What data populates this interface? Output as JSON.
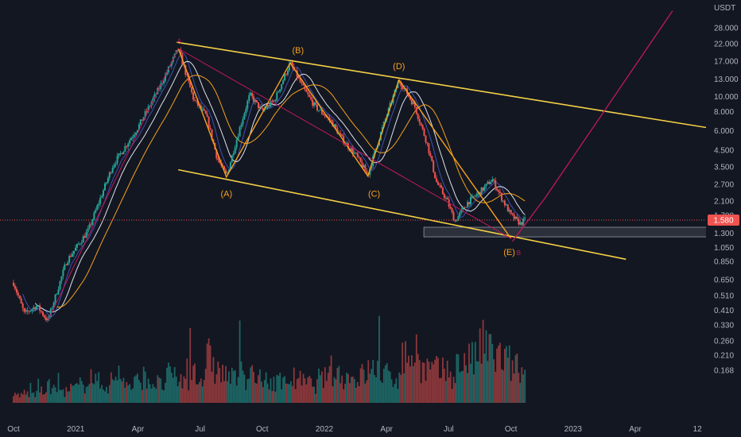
{
  "chart_data": {
    "type": "candlestick",
    "quote_currency": "USDT",
    "y_scale": "log",
    "ylim": [
      0.15,
      36
    ],
    "y_ticks": [
      "28.000",
      "22.000",
      "17.000",
      "13.000",
      "10.000",
      "8.000",
      "6.000",
      "4.500",
      "3.500",
      "2.700",
      "2.100",
      "1.700",
      "1.300",
      "1.050",
      "0.850",
      "0.650",
      "0.510",
      "0.410",
      "0.330",
      "0.260",
      "0.210",
      "0.168"
    ],
    "x_ticks": [
      "Oct",
      "2021",
      "Apr",
      "Jul",
      "Oct",
      "2022",
      "Apr",
      "Jul",
      "Oct",
      "2023",
      "Apr",
      "12"
    ],
    "current_price": "1.580",
    "grid": false,
    "legend": "none",
    "colors": {
      "background": "#131722",
      "up": "#26a69a",
      "down": "#ef5350",
      "channel": "#f5d046",
      "wave": "#f7a21b",
      "projection": "#c2185b",
      "ma_fast": "#3f51b5",
      "ma_mid": "#e0e3eb",
      "ma_slow": "#f7a21b"
    },
    "price_path": [
      {
        "t": 0.0,
        "p": 0.62
      },
      {
        "t": 0.35,
        "p": 0.39
      },
      {
        "t": 0.75,
        "p": 0.44
      },
      {
        "t": 1.1,
        "p": 0.35
      },
      {
        "t": 1.7,
        "p": 0.85
      },
      {
        "t": 2.4,
        "p": 1.35
      },
      {
        "t": 3.2,
        "p": 3.6
      },
      {
        "t": 4.0,
        "p": 6.3
      },
      {
        "t": 4.7,
        "p": 11.5
      },
      {
        "t": 5.3,
        "p": 20.5
      },
      {
        "t": 5.8,
        "p": 9.5
      },
      {
        "t": 6.2,
        "p": 7.5
      },
      {
        "t": 6.55,
        "p": 4.0
      },
      {
        "t": 6.85,
        "p": 3.05
      },
      {
        "t": 7.3,
        "p": 6.5
      },
      {
        "t": 7.6,
        "p": 10.3
      },
      {
        "t": 8.0,
        "p": 8.0
      },
      {
        "t": 8.4,
        "p": 9.5
      },
      {
        "t": 8.9,
        "p": 16.5
      },
      {
        "t": 9.3,
        "p": 11.5
      },
      {
        "t": 9.7,
        "p": 8.6
      },
      {
        "t": 10.2,
        "p": 7.0
      },
      {
        "t": 10.6,
        "p": 5.2
      },
      {
        "t": 11.0,
        "p": 4.2
      },
      {
        "t": 11.4,
        "p": 3.1
      },
      {
        "t": 11.8,
        "p": 5.7
      },
      {
        "t": 12.4,
        "p": 12.8
      },
      {
        "t": 12.9,
        "p": 8.7
      },
      {
        "t": 13.3,
        "p": 5.0
      },
      {
        "t": 13.6,
        "p": 2.8
      },
      {
        "t": 13.95,
        "p": 2.1
      },
      {
        "t": 14.2,
        "p": 1.55
      },
      {
        "t": 14.6,
        "p": 2.05
      },
      {
        "t": 15.0,
        "p": 2.4
      },
      {
        "t": 15.4,
        "p": 2.9
      },
      {
        "t": 15.7,
        "p": 2.2
      },
      {
        "t": 16.0,
        "p": 1.7
      },
      {
        "t": 16.3,
        "p": 1.5
      },
      {
        "t": 16.45,
        "p": 1.58
      }
    ],
    "channel": [
      {
        "name": "upper",
        "points": [
          {
            "t": 5.25,
            "p": 22.5
          },
          {
            "t": 22.7,
            "p": 6.1
          }
        ]
      },
      {
        "name": "lower",
        "points": [
          {
            "t": 5.3,
            "p": 3.35
          },
          {
            "t": 19.7,
            "p": 0.88
          }
        ]
      }
    ],
    "wave_path": [
      {
        "t": 5.3,
        "p": 20.5
      },
      {
        "t": 6.85,
        "p": 3.0
      },
      {
        "t": 8.9,
        "p": 16.5
      },
      {
        "t": 11.4,
        "p": 3.05
      },
      {
        "t": 12.4,
        "p": 12.8
      },
      {
        "t": 16.0,
        "p": 1.2
      }
    ],
    "wave_labels": [
      {
        "text": "(A)",
        "t": 6.85,
        "p": 2.35
      },
      {
        "text": "(B)",
        "t": 9.15,
        "p": 20.0
      },
      {
        "text": "(C)",
        "t": 11.6,
        "p": 2.35
      },
      {
        "text": "(D)",
        "t": 12.4,
        "p": 15.8
      },
      {
        "text": "(E)",
        "t": 15.95,
        "p": 0.98
      }
    ],
    "small_labels": [
      {
        "text": "A",
        "t": 5.33,
        "p": 23.0
      },
      {
        "text": "B",
        "t": 16.25,
        "p": 0.97
      }
    ],
    "support_zone": {
      "t1": 13.2,
      "t2": 22.45,
      "p_low": 1.23,
      "p_high": 1.42
    },
    "projection": [
      {
        "t": 16.05,
        "p": 1.15
      },
      {
        "t": 17.1,
        "p": 2.2
      },
      {
        "t": 21.2,
        "p": 36.0
      }
    ],
    "volume_profile": [
      0.1,
      0.12,
      0.1,
      0.14,
      0.2,
      0.16,
      0.14,
      0.18,
      0.22,
      0.35,
      0.26,
      0.22,
      0.28,
      0.3,
      0.2,
      0.26,
      0.32,
      0.25,
      0.22,
      0.34,
      0.3,
      0.25,
      0.45,
      0.3,
      0.55,
      0.4,
      0.35,
      0.3,
      0.38,
      0.32,
      0.28,
      0.22,
      0.28,
      0.24,
      0.3,
      0.28,
      0.25,
      0.22,
      0.3,
      0.4,
      0.36,
      0.32,
      0.28,
      0.34,
      0.4,
      0.45,
      0.34,
      0.3,
      0.55,
      0.6,
      0.48,
      0.42,
      0.4,
      0.38,
      0.32,
      0.46,
      0.55,
      0.52,
      0.7,
      0.64,
      0.58,
      0.5,
      0.45,
      0.35
    ]
  }
}
